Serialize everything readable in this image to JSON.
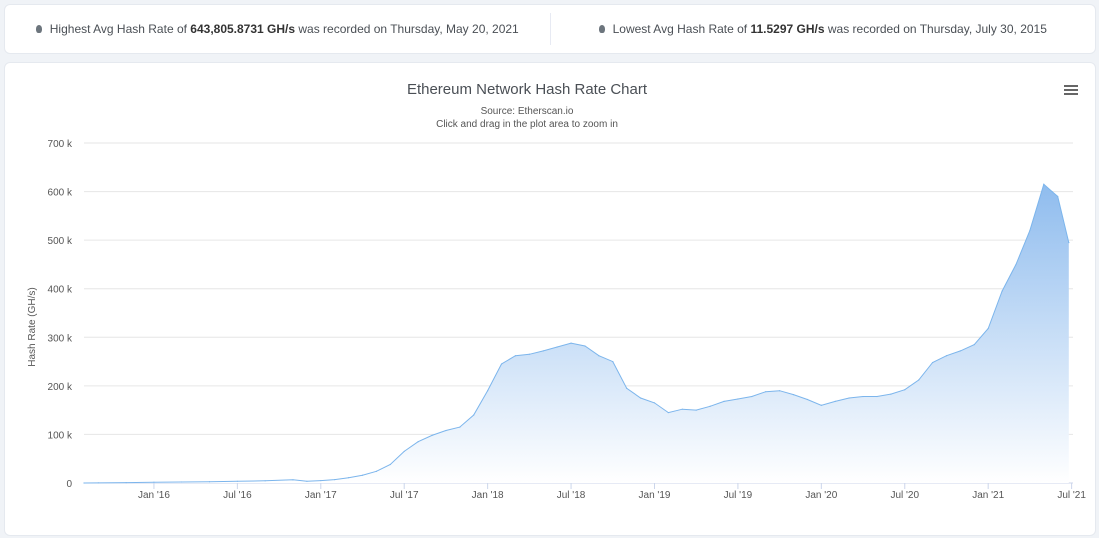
{
  "stats": {
    "highest": {
      "prefix": "Highest Avg Hash Rate of ",
      "value": "643,805.8731 GH/s",
      "suffix": " was recorded on Thursday, May 20, 2021"
    },
    "lowest": {
      "prefix": "Lowest Avg Hash Rate of ",
      "value": "11.5297 GH/s",
      "suffix": " was recorded on Thursday, July 30, 2015"
    }
  },
  "menu_icon": "hamburger-menu-icon",
  "colors": {
    "line": "#7cb5ec",
    "area_top": "#8fbcee",
    "area_bottom": "#ffffff"
  },
  "chart_data": {
    "type": "area",
    "title": "Ethereum Network Hash Rate Chart",
    "subtitle": "Source: Etherscan.io",
    "subtitle2": "Click and drag in the plot area to zoom in",
    "xlabel": "",
    "ylabel": "Hash Rate (GH/s)",
    "ylim": [
      0,
      700000
    ],
    "yticks": [
      {
        "v": 0,
        "label": "0"
      },
      {
        "v": 100000,
        "label": "100 k"
      },
      {
        "v": 200000,
        "label": "200 k"
      },
      {
        "v": 300000,
        "label": "300 k"
      },
      {
        "v": 400000,
        "label": "400 k"
      },
      {
        "v": 500000,
        "label": "500 k"
      },
      {
        "v": 600000,
        "label": "600 k"
      },
      {
        "v": 700000,
        "label": "700 k"
      }
    ],
    "xticks": [
      {
        "t": "2016-01",
        "label": "Jan '16"
      },
      {
        "t": "2016-07",
        "label": "Jul '16"
      },
      {
        "t": "2017-01",
        "label": "Jan '17"
      },
      {
        "t": "2017-07",
        "label": "Jul '17"
      },
      {
        "t": "2018-01",
        "label": "Jan '18"
      },
      {
        "t": "2018-07",
        "label": "Jul '18"
      },
      {
        "t": "2019-01",
        "label": "Jan '19"
      },
      {
        "t": "2019-07",
        "label": "Jul '19"
      },
      {
        "t": "2020-01",
        "label": "Jan '20"
      },
      {
        "t": "2020-07",
        "label": "Jul '20"
      },
      {
        "t": "2021-01",
        "label": "Jan '21"
      },
      {
        "t": "2021-07",
        "label": "Jul '21"
      }
    ],
    "xrange": [
      "2015-07.97",
      "2021-07.1"
    ],
    "points": [
      [
        "2015-07.97",
        12
      ],
      [
        "2015-09",
        300
      ],
      [
        "2015-11",
        800
      ],
      [
        "2016-01",
        1500
      ],
      [
        "2016-03",
        2000
      ],
      [
        "2016-05",
        2500
      ],
      [
        "2016-07",
        3500
      ],
      [
        "2016-09",
        4500
      ],
      [
        "2016-11",
        6500
      ],
      [
        "2016-12",
        3500
      ],
      [
        "2017-01",
        5000
      ],
      [
        "2017-02",
        7000
      ],
      [
        "2017-03",
        11000
      ],
      [
        "2017-04",
        16000
      ],
      [
        "2017-05",
        24000
      ],
      [
        "2017-06",
        38000
      ],
      [
        "2017-07",
        65000
      ],
      [
        "2017-08",
        85000
      ],
      [
        "2017-09",
        98000
      ],
      [
        "2017-10",
        108000
      ],
      [
        "2017-11",
        115000
      ],
      [
        "2017-12",
        140000
      ],
      [
        "2018-01",
        190000
      ],
      [
        "2018-02",
        245000
      ],
      [
        "2018-03",
        262000
      ],
      [
        "2018-04",
        265000
      ],
      [
        "2018-05",
        272000
      ],
      [
        "2018-06",
        280000
      ],
      [
        "2018-07",
        288000
      ],
      [
        "2018-08",
        282000
      ],
      [
        "2018-09",
        262000
      ],
      [
        "2018-10",
        250000
      ],
      [
        "2018-11",
        195000
      ],
      [
        "2018-12",
        175000
      ],
      [
        "2019-01",
        165000
      ],
      [
        "2019-02",
        145000
      ],
      [
        "2019-03",
        152000
      ],
      [
        "2019-04",
        150000
      ],
      [
        "2019-05",
        158000
      ],
      [
        "2019-06",
        168000
      ],
      [
        "2019-07",
        173000
      ],
      [
        "2019-08",
        178000
      ],
      [
        "2019-09",
        188000
      ],
      [
        "2019-10",
        190000
      ],
      [
        "2019-11",
        182000
      ],
      [
        "2019-12",
        172000
      ],
      [
        "2020-01",
        160000
      ],
      [
        "2020-02",
        168000
      ],
      [
        "2020-03",
        175000
      ],
      [
        "2020-04",
        178000
      ],
      [
        "2020-05",
        178000
      ],
      [
        "2020-06",
        183000
      ],
      [
        "2020-07",
        192000
      ],
      [
        "2020-08",
        212000
      ],
      [
        "2020-09",
        248000
      ],
      [
        "2020-10",
        262000
      ],
      [
        "2020-11",
        272000
      ],
      [
        "2020-12",
        285000
      ],
      [
        "2021-01",
        318000
      ],
      [
        "2021-02",
        395000
      ],
      [
        "2021-03",
        450000
      ],
      [
        "2021-04",
        520000
      ],
      [
        "2021-05",
        615000
      ],
      [
        "2021-05.6",
        600000
      ],
      [
        "2021-06",
        590000
      ],
      [
        "2021-06.8",
        495000
      ]
    ]
  }
}
